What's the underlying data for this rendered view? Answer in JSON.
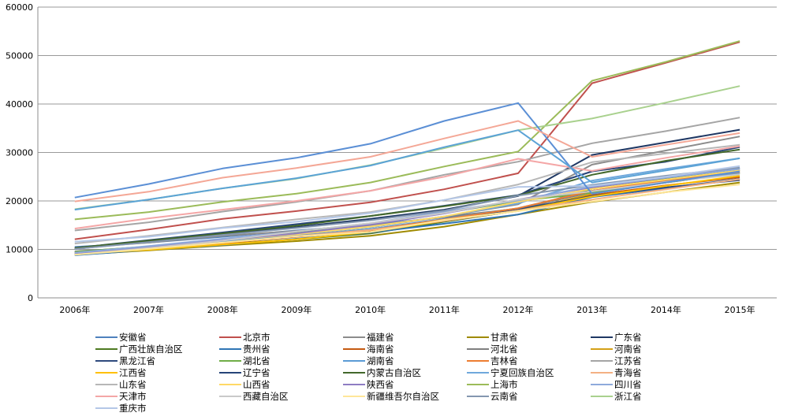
{
  "chart_data": {
    "type": "line",
    "categories": [
      "2006年",
      "2007年",
      "2008年",
      "2009年",
      "2010年",
      "2011年",
      "2012年",
      "2013年",
      "2014年",
      "2015年"
    ],
    "y_ticks": [
      "0",
      "10000",
      "20000",
      "30000",
      "40000",
      "50000",
      "60000"
    ],
    "ylim": [
      0,
      60000
    ],
    "grid": true,
    "legend_position": "bottom",
    "series": [
      {
        "name": "安徽省",
        "color": "#4f81bd",
        "values": [
          10500,
          11400,
          12600,
          13900,
          15100,
          16600,
          18000,
          22600,
          24700,
          26800
        ]
      },
      {
        "name": "北京市",
        "color": "#c0504d",
        "values": [
          12100,
          14100,
          16300,
          17900,
          19700,
          22400,
          25700,
          44300,
          48500,
          52800
        ]
      },
      {
        "name": "福建省",
        "color": "#8c8c8c",
        "values": [
          10300,
          11400,
          12800,
          13800,
          14800,
          16800,
          19300,
          27500,
          30400,
          33300
        ]
      },
      {
        "name": "甘肃省",
        "color": "#9f8a00",
        "values": [
          8900,
          9800,
          10800,
          11700,
          12800,
          14700,
          17200,
          19800,
          21800,
          23800
        ]
      },
      {
        "name": "广东省",
        "color": "#1f3864",
        "values": [
          10100,
          11600,
          13100,
          14600,
          16300,
          18200,
          21000,
          29500,
          32100,
          34700
        ]
      },
      {
        "name": "广西壮族自治区",
        "color": "#4e7a22",
        "values": [
          9400,
          10200,
          11100,
          12100,
          13300,
          15700,
          18000,
          22500,
          24700,
          26400
        ]
      },
      {
        "name": "贵州省",
        "color": "#2f75b5",
        "values": [
          8800,
          9900,
          10900,
          12200,
          13500,
          15300,
          17200,
          20800,
          22600,
          24600
        ]
      },
      {
        "name": "海南省",
        "color": "#c55a11",
        "values": [
          9100,
          10100,
          11300,
          12600,
          13900,
          15900,
          18000,
          21200,
          23200,
          24900
        ]
      },
      {
        "name": "河北省",
        "color": "#7f7f7f",
        "values": [
          9600,
          10500,
          11800,
          13100,
          14600,
          16700,
          18400,
          21800,
          24100,
          26300
        ]
      },
      {
        "name": "河南省",
        "color": "#d4a017",
        "values": [
          9400,
          10400,
          11600,
          12800,
          14200,
          16200,
          17900,
          21500,
          23800,
          25800
        ]
      },
      {
        "name": "黑龙江省",
        "color": "#2e4a7d",
        "values": [
          9200,
          10300,
          11500,
          12800,
          14100,
          16000,
          18300,
          21000,
          22800,
          24300
        ]
      },
      {
        "name": "湖北省",
        "color": "#70ad47",
        "values": [
          9500,
          10600,
          12000,
          13400,
          15100,
          17500,
          20000,
          21700,
          23800,
          25700
        ]
      },
      {
        "name": "湖南省",
        "color": "#5b9bd5",
        "values": [
          9300,
          10300,
          11500,
          12800,
          14200,
          16300,
          18500,
          22100,
          24000,
          25800
        ]
      },
      {
        "name": "吉林省",
        "color": "#ed7d31",
        "values": [
          9200,
          10200,
          11300,
          12700,
          14000,
          16200,
          18500,
          22100,
          24300,
          26000
        ]
      },
      {
        "name": "江苏省",
        "color": "#a5a5a5",
        "values": [
          13900,
          15600,
          17800,
          19800,
          22100,
          25400,
          28100,
          31900,
          34400,
          37200
        ]
      },
      {
        "name": "江西省",
        "color": "#ffc000",
        "values": [
          9100,
          9900,
          11000,
          12100,
          13600,
          15900,
          18000,
          20900,
          23100,
          25200
        ]
      },
      {
        "name": "辽宁省",
        "color": "#264478",
        "values": [
          10300,
          11900,
          13500,
          15200,
          16900,
          19000,
          21200,
          26100,
          28100,
          31100
        ]
      },
      {
        "name": "内蒙古自治区",
        "color": "#43682b",
        "values": [
          10300,
          11800,
          13300,
          14900,
          16900,
          18900,
          21100,
          25400,
          28300,
          30600
        ]
      },
      {
        "name": "宁夏回族自治区",
        "color": "#6fa8dc",
        "values": [
          9200,
          10400,
          11800,
          13100,
          14600,
          16800,
          19500,
          24200,
          26600,
          28800
        ]
      },
      {
        "name": "青海省",
        "color": "#f4b183",
        "values": [
          9300,
          10300,
          11400,
          12700,
          14000,
          15900,
          18000,
          20300,
          22400,
          24500
        ]
      },
      {
        "name": "山东省",
        "color": "#b7b7b7",
        "values": [
          11200,
          12800,
          14500,
          16200,
          17700,
          20200,
          23400,
          28000,
          29800,
          31600
        ]
      },
      {
        "name": "山西省",
        "color": "#ffd966",
        "values": [
          9200,
          10500,
          11900,
          13100,
          14700,
          16800,
          19800,
          22500,
          24400,
          26300
        ]
      },
      {
        "name": "陕西省",
        "color": "#8e7cc3",
        "values": [
          9200,
          10500,
          11900,
          13300,
          15100,
          17400,
          20300,
          22800,
          24800,
          26700
        ]
      },
      {
        "name": "上海市",
        "color": "#9bbb59",
        "values": [
          16200,
          17700,
          19800,
          21500,
          23800,
          27100,
          30200,
          44800,
          48700,
          53000
        ]
      },
      {
        "name": "四川省",
        "color": "#8eaadb",
        "values": [
          9300,
          10700,
          12200,
          13700,
          15400,
          17800,
          20100,
          23000,
          24800,
          26600
        ]
      },
      {
        "name": "天津市",
        "color": "#f4a6a6",
        "values": [
          14300,
          16400,
          18200,
          20000,
          22100,
          25000,
          28700,
          26200,
          28900,
          31300
        ]
      },
      {
        "name": "西藏自治区",
        "color": "#c9c9c9",
        "values": [
          8900,
          10300,
          11800,
          13700,
          15400,
          17500,
          20300,
          22000,
          23900,
          25500
        ]
      },
      {
        "name": "新疆维吾尔自治区",
        "color": "#ffe699",
        "values": [
          8900,
          10100,
          11400,
          12700,
          13600,
          16100,
          17900,
          19900,
          21800,
          23400
        ]
      },
      {
        "name": "云南省",
        "color": "#8497b0",
        "values": [
          10100,
          11500,
          13000,
          14400,
          16000,
          18000,
          21100,
          23300,
          25200,
          26900
        ]
      },
      {
        "name": "浙江省",
        "color": "#a9d18e",
        "values": [
          18300,
          20300,
          22600,
          24600,
          27400,
          30900,
          34600,
          37000,
          40300,
          43700
        ]
      },
      {
        "name": "重庆市",
        "color": "#b4c7e7",
        "values": [
          11600,
          12600,
          14400,
          15700,
          17500,
          20200,
          22900,
          23100,
          25000,
          27200
        ]
      },
      {
        "name": "",
        "color": "#5b8fd5",
        "values": [
          20700,
          23500,
          26700,
          28900,
          31800,
          36500,
          40200,
          21500,
          23800,
          26100
        ]
      },
      {
        "name": "",
        "color": "#f4a796",
        "values": [
          19900,
          21900,
          24800,
          26800,
          29100,
          32900,
          36500,
          29100,
          31600,
          34000
        ]
      },
      {
        "name": "",
        "color": "#5ba3d6",
        "values": [
          18200,
          20300,
          22600,
          24700,
          27300,
          31100,
          34600,
          23800,
          26300,
          28800
        ]
      }
    ]
  }
}
